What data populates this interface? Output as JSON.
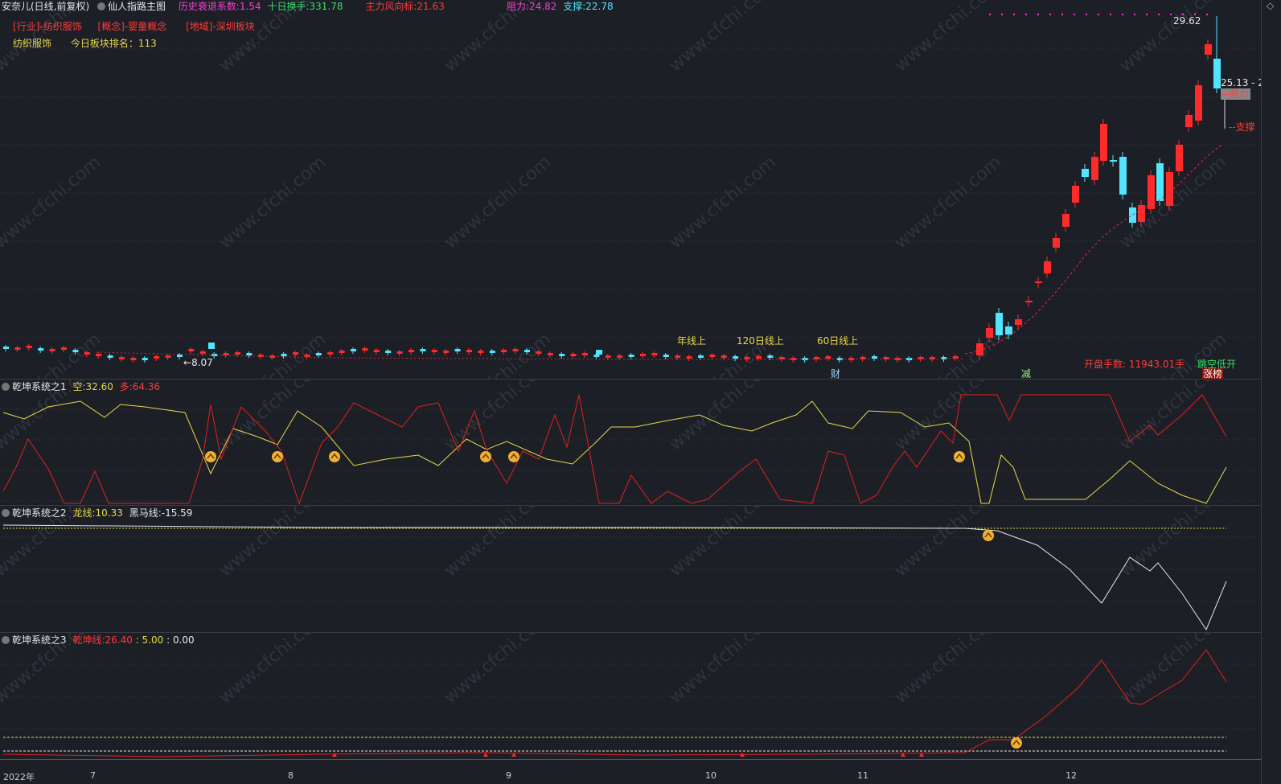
{
  "main": {
    "stock_name": "安奈儿(日线,前复权)",
    "indicator_name": "仙人指路主图",
    "decay_label": "历史衰退系数:",
    "decay_value": "1.54",
    "turnover_label": "十日换手:",
    "turnover_value": "331.78",
    "main_force_label": "主力风向标:",
    "main_force_value": "21.63",
    "resistance_label": "阻力:",
    "resistance_value": "24.82",
    "support_label": "支撑:",
    "support_value": "22.78",
    "industry_tag": "[行业]-纺织服饰",
    "concept_tag": "[概念]-婴童概念",
    "region_tag": "[地域]-深圳板块",
    "sector_name": "纺织服饰",
    "sector_rank_label": "今日板块排名：",
    "sector_rank_value": "113",
    "high_price": "29.62",
    "last_price": "25.13 - 2",
    "resistance_tag": "阻力",
    "support_tag": "支撑",
    "low_price": "8.07",
    "ma_year": "年线上",
    "ma_120": "120日线上",
    "ma_60": "60日线上",
    "open_volume_label": "开盘手数:",
    "open_volume_value": "11943.01手",
    "gap_open": "跳空低开",
    "limit_up": "涨榜",
    "marker_cai": "财",
    "marker_jian": "减"
  },
  "panel1": {
    "title": "乾坤系统之1",
    "kong_label": "空:",
    "kong_value": "32.60",
    "duo_label": "多:",
    "duo_value": "64.36"
  },
  "panel2": {
    "title": "乾坤系统之2",
    "dragon_label": "龙线:",
    "dragon_value": "10.33",
    "horse_label": "黑马线:",
    "horse_value": "-15.59"
  },
  "panel3": {
    "title": "乾坤系统之3",
    "qk_label": "乾坤线:",
    "qk_value": "26.40",
    "v2": ": 5.00",
    "v3": ": 0.00"
  },
  "xaxis": [
    "2022年",
    "7",
    "8",
    "9",
    "10",
    "11",
    "12"
  ],
  "watermark": "www.cfchi.com",
  "colors": {
    "up": "#ff2a2a",
    "down": "#52e5ff",
    "yellow": "#e8d84a",
    "bg": "#1c1f26"
  }
}
